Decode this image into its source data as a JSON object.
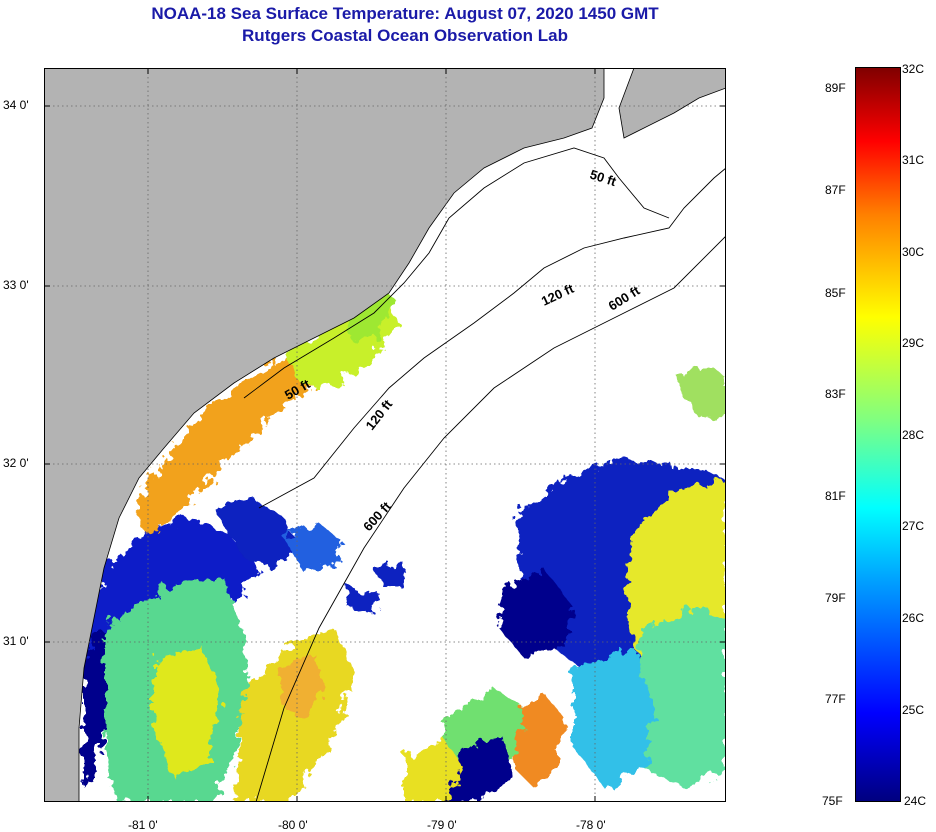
{
  "title": {
    "line1": "NOAA-18 Sea Surface Temperature:  August 07, 2020 1450 GMT",
    "line2": "Rutgers Coastal Ocean Observation Lab"
  },
  "axes": {
    "lat_labels": [
      "34 0'",
      "33 0'",
      "32 0'",
      "31 0'"
    ],
    "lon_labels": [
      "-81 0'",
      "-80 0'",
      "-79 0'",
      "-78 0'"
    ]
  },
  "contours": {
    "labels": [
      "50 ft",
      "120 ft",
      "600 ft",
      "50 ft",
      "120 ft",
      "600 ft"
    ]
  },
  "colorbar": {
    "fahrenheit": [
      "89F",
      "87F",
      "85F",
      "83F",
      "81F",
      "79F",
      "77F",
      "75F"
    ],
    "celsius": [
      "32C",
      "31C",
      "30C",
      "29C",
      "28C",
      "27C",
      "26C",
      "25C",
      "24C"
    ]
  },
  "colors": {
    "land": "#b3b3b3",
    "title": "#1a1aa8",
    "no_data": "#ffffff"
  }
}
